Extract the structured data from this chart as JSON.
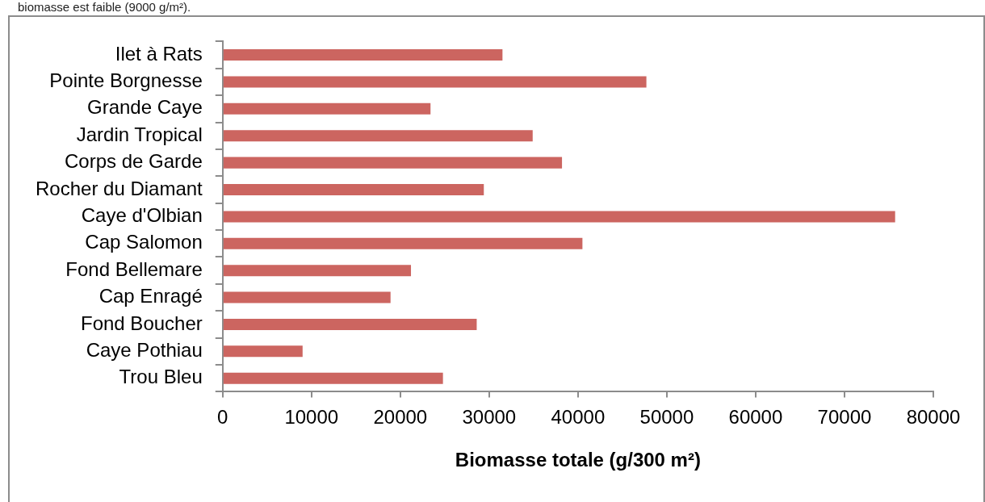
{
  "chart_data": {
    "type": "bar",
    "orientation": "horizontal",
    "categories": [
      "Ilet à Rats",
      "Pointe Borgnesse",
      "Grande Caye",
      "Jardin Tropical",
      "Corps de Garde",
      "Rocher du Diamant",
      "Caye d'Olbian",
      "Cap Salomon",
      "Fond Bellemare",
      "Cap Enragé",
      "Fond Boucher",
      "Caye Pothiau",
      "Trou Bleu"
    ],
    "values": [
      31500,
      47700,
      23400,
      34900,
      38200,
      29400,
      75700,
      40500,
      21200,
      18900,
      28600,
      9000,
      24800
    ],
    "color": "#cc6560",
    "xlim": [
      0,
      80000
    ],
    "xticks": [
      0,
      10000,
      20000,
      30000,
      40000,
      50000,
      60000,
      70000,
      80000
    ],
    "xlabel": "Biomasse totale (g/300 m²)",
    "annotations": [
      "biomasse est faible (9000 g/m²)."
    ]
  }
}
